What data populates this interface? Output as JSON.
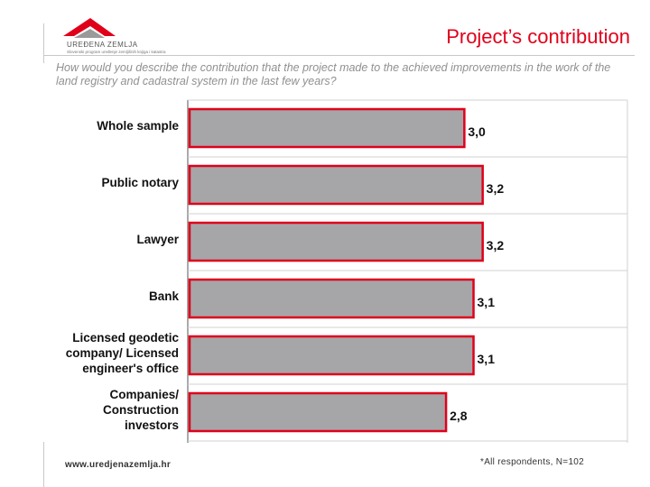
{
  "header": {
    "logo_text": "UREĐENA ZEMLJA",
    "logo_subtext": "Slovenski program uređenje zemljišnih knjiga i katastra",
    "title": "Project’s contribution"
  },
  "question": "How would you describe the contribution that the project made to the achieved improvements in the work of the land registry and cadastral system in the last few years?",
  "colors": {
    "accent": "#e0001a",
    "bar_fill": "#a6a6a9",
    "bar_border": "#e0001a",
    "gridline": "#d0d0d0"
  },
  "chart_data": {
    "type": "bar",
    "orientation": "horizontal",
    "categories": [
      [
        "Whole sample"
      ],
      [
        "Public notary"
      ],
      [
        "Lawyer"
      ],
      [
        "Bank"
      ],
      [
        "Licensed geodetic",
        "company/ Licensed",
        "engineer's office"
      ],
      [
        "Companies/",
        "Construction",
        "investors"
      ]
    ],
    "values": [
      3.0,
      3.2,
      3.2,
      3.1,
      3.1,
      2.8
    ],
    "value_labels": [
      "3,0",
      "3,2",
      "3,2",
      "3,1",
      "3,1",
      "2,8"
    ],
    "xlim": [
      0,
      4.8
    ],
    "grid": "horizontal-separators",
    "legend": "none"
  },
  "footer": {
    "url": "www.uredjenazemlja.hr",
    "note": "*All respondents, N=102"
  }
}
